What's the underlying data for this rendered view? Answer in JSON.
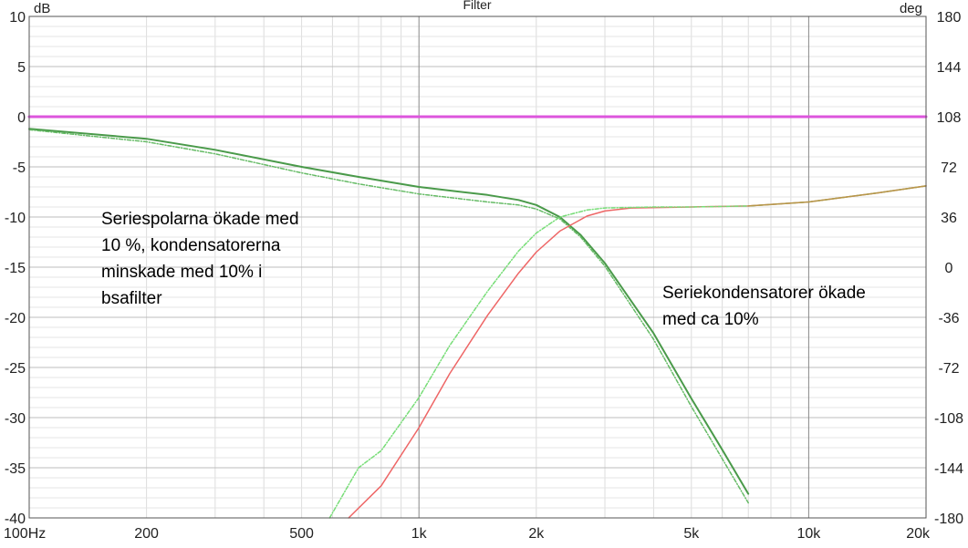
{
  "chart_data": {
    "type": "line",
    "title": "Filter",
    "y_left_unit": "dB",
    "y_right_unit": "deg",
    "x_scale": "log",
    "xlim": [
      100,
      20000
    ],
    "ylim": [
      -40,
      10
    ],
    "y2lim": [
      -180,
      180
    ],
    "x_ticks": [
      {
        "value": 100,
        "label": "100Hz"
      },
      {
        "value": 200,
        "label": "200"
      },
      {
        "value": 500,
        "label": "500"
      },
      {
        "value": 1000,
        "label": "1k"
      },
      {
        "value": 2000,
        "label": "2k"
      },
      {
        "value": 5000,
        "label": "5k"
      },
      {
        "value": 10000,
        "label": "10k"
      },
      {
        "value": 20000,
        "label": "20k"
      }
    ],
    "y_ticks": [
      10,
      5,
      0,
      -5,
      -10,
      -15,
      -20,
      -25,
      -30,
      -35,
      -40
    ],
    "y2_ticks": [
      180,
      144,
      108,
      72,
      36,
      0,
      -36,
      -72,
      -108,
      -144,
      -180
    ],
    "grid": true,
    "series": [
      {
        "color": "#dd55dd",
        "width": 3,
        "dash": "",
        "x": [
          100,
          20000
        ],
        "y": [
          0,
          0
        ]
      },
      {
        "color": "#4a9a4a",
        "width": 2,
        "dash": "",
        "x": [
          100,
          200,
          300,
          500,
          700,
          1000,
          1500,
          1800,
          2000,
          2300,
          2600,
          3000,
          4000,
          5000,
          6000,
          7000
        ],
        "y": [
          -1.2,
          -2.2,
          -3.3,
          -5.0,
          -6.0,
          -7.0,
          -7.8,
          -8.3,
          -8.8,
          -10.0,
          -11.8,
          -14.6,
          -21.6,
          -28.1,
          -33.2,
          -37.6
        ]
      },
      {
        "color": "#66bb66",
        "width": 1.5,
        "dash": "4,2,1,2",
        "x": [
          100,
          200,
          300,
          500,
          700,
          1000,
          1500,
          1800,
          2000,
          2300,
          2600,
          3000,
          4000,
          5000,
          6000,
          7000
        ],
        "y": [
          -1.3,
          -2.5,
          -3.7,
          -5.6,
          -6.7,
          -7.7,
          -8.5,
          -8.8,
          -9.2,
          -10.2,
          -12.0,
          -14.9,
          -22.2,
          -28.9,
          -34.1,
          -38.5
        ]
      },
      {
        "color": "#ee6666",
        "width": 1.5,
        "dash": "",
        "x": [
          660,
          800,
          1000,
          1200,
          1500,
          1800,
          2000,
          2300,
          2700,
          3000,
          3500,
          5000,
          7000,
          10000,
          15000,
          20000
        ],
        "y": [
          -40,
          -36.8,
          -31.0,
          -25.6,
          -19.8,
          -15.6,
          -13.5,
          -11.4,
          -9.9,
          -9.4,
          -9.1,
          -9.0,
          -8.9,
          -8.5,
          -7.6,
          -6.9
        ]
      },
      {
        "color": "#77dd77",
        "width": 1.5,
        "dash": "4,2,1,2",
        "x": [
          590,
          700,
          800,
          1000,
          1200,
          1500,
          1800,
          2000,
          2300,
          2700,
          3000,
          4000,
          5000,
          7000,
          10000,
          15000,
          20000
        ],
        "y": [
          -40,
          -35.0,
          -33.3,
          -28.0,
          -22.8,
          -17.4,
          -13.4,
          -11.6,
          -10.0,
          -9.3,
          -9.1,
          -9.0,
          -9.0,
          -8.9,
          -8.5,
          -7.6,
          -6.9
        ]
      },
      {
        "color": "#b8964a",
        "width": 1.5,
        "dash": "",
        "x": [
          7000,
          10000,
          15000,
          20000
        ],
        "y": [
          -8.9,
          -8.5,
          -7.6,
          -6.9
        ]
      }
    ],
    "annotations": [
      "Seriespolarna ökade med\n10 %, kondensatorerna\nminskade med 10% i\nbsafilter",
      "Seriekondensatorer ökade\nmed ca 10%"
    ]
  }
}
